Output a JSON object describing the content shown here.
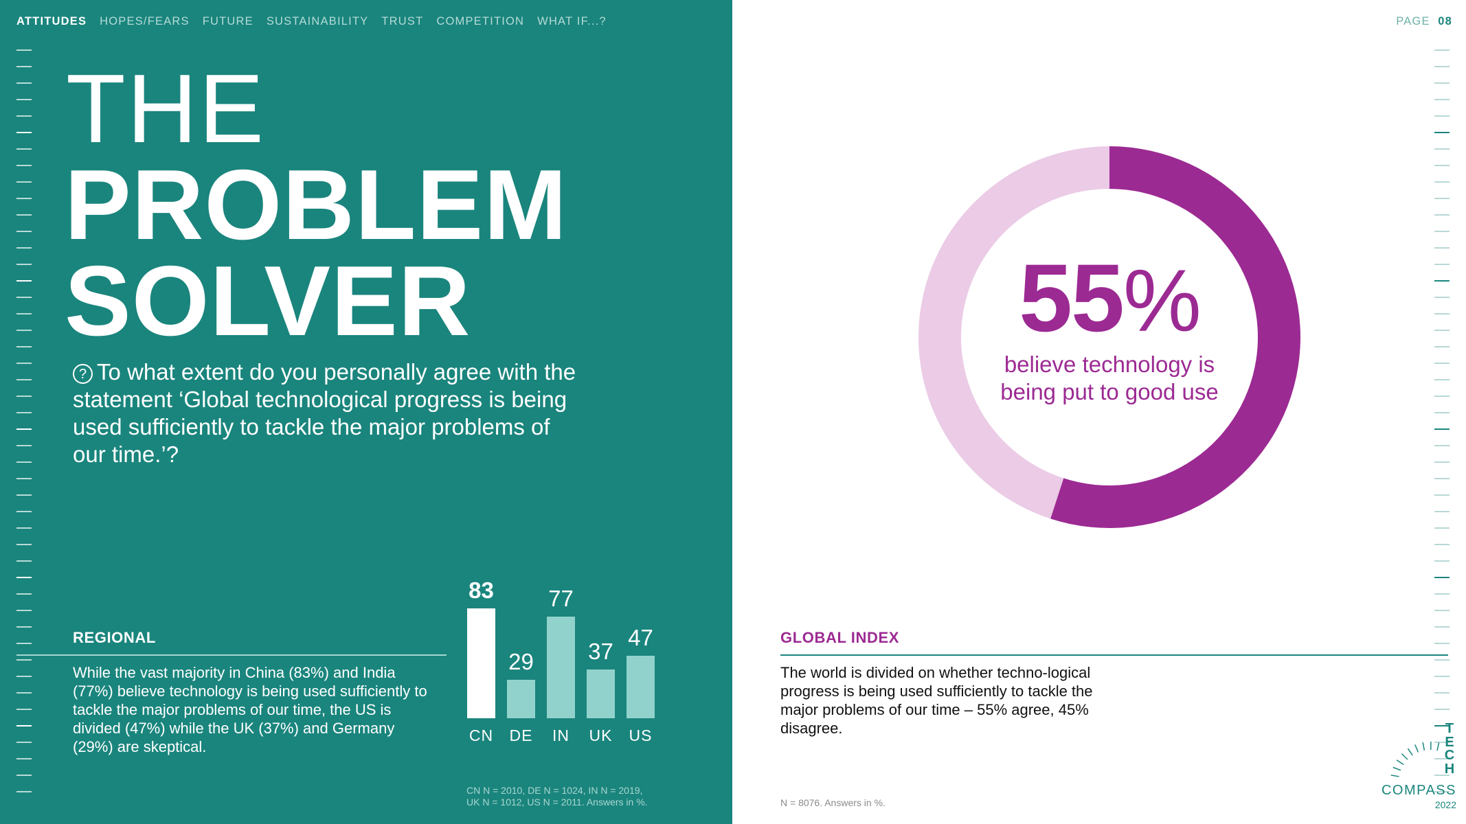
{
  "nav": {
    "items": [
      "ATTITUDES",
      "HOPES/FEARS",
      "FUTURE",
      "SUSTAINABILITY",
      "TRUST",
      "COMPETITION",
      "WHAT IF...?"
    ],
    "active_index": 0
  },
  "page": {
    "label": "PAGE",
    "number": "08"
  },
  "title": {
    "line1": "THE",
    "line2": "PROBLEM\nSOLVER"
  },
  "question": {
    "icon": "question-circle-icon",
    "text": "To what extent do you personally agree with the statement ‘Global technological progress is being used sufficiently to tackle the major problems of our time.’?"
  },
  "regional": {
    "heading": "REGIONAL",
    "text": "While the vast majority in China (83%) and India (77%) believe technology is being used sufficiently to tackle the major problems of our time, the US is divided (47%) while the UK (37%) and Germany (29%) are skeptical.",
    "footnote_line1": "CN N = 2010, DE N = 1024, IN N = 2019,",
    "footnote_line2": "UK N = 1012, US N = 2011. Answers in %."
  },
  "global": {
    "heading": "GLOBAL INDEX",
    "text": "The world is divided on whether techno-logical progress is being used sufficiently to tackle the major problems of our time – 55% agree, 45% disagree.",
    "footnote": "N = 8076. Answers in %."
  },
  "donut_label": {
    "number": "55",
    "unit": "%",
    "caption": "believe technology is being put to good use"
  },
  "logo": {
    "letters": [
      "T",
      "E",
      "C",
      "H"
    ],
    "word": "COMPASS",
    "year": "2022"
  },
  "colors": {
    "teal": "#1a857d",
    "bar_light": "#91d3cc",
    "purple": "#9c2a93",
    "purple_light": "#ebcbe6"
  },
  "chart_data": [
    {
      "type": "bar",
      "categories": [
        "CN",
        "DE",
        "IN",
        "UK",
        "US"
      ],
      "values": [
        83,
        29,
        77,
        37,
        47
      ],
      "highlight": "CN",
      "title": "",
      "xlabel": "",
      "ylabel": "",
      "ylim": [
        0,
        100
      ]
    },
    {
      "type": "pie",
      "style": "donut",
      "labels": [
        "agree",
        "disagree"
      ],
      "values": [
        55,
        45
      ],
      "colors": [
        "#9c2a93",
        "#ebcbe6"
      ]
    }
  ]
}
